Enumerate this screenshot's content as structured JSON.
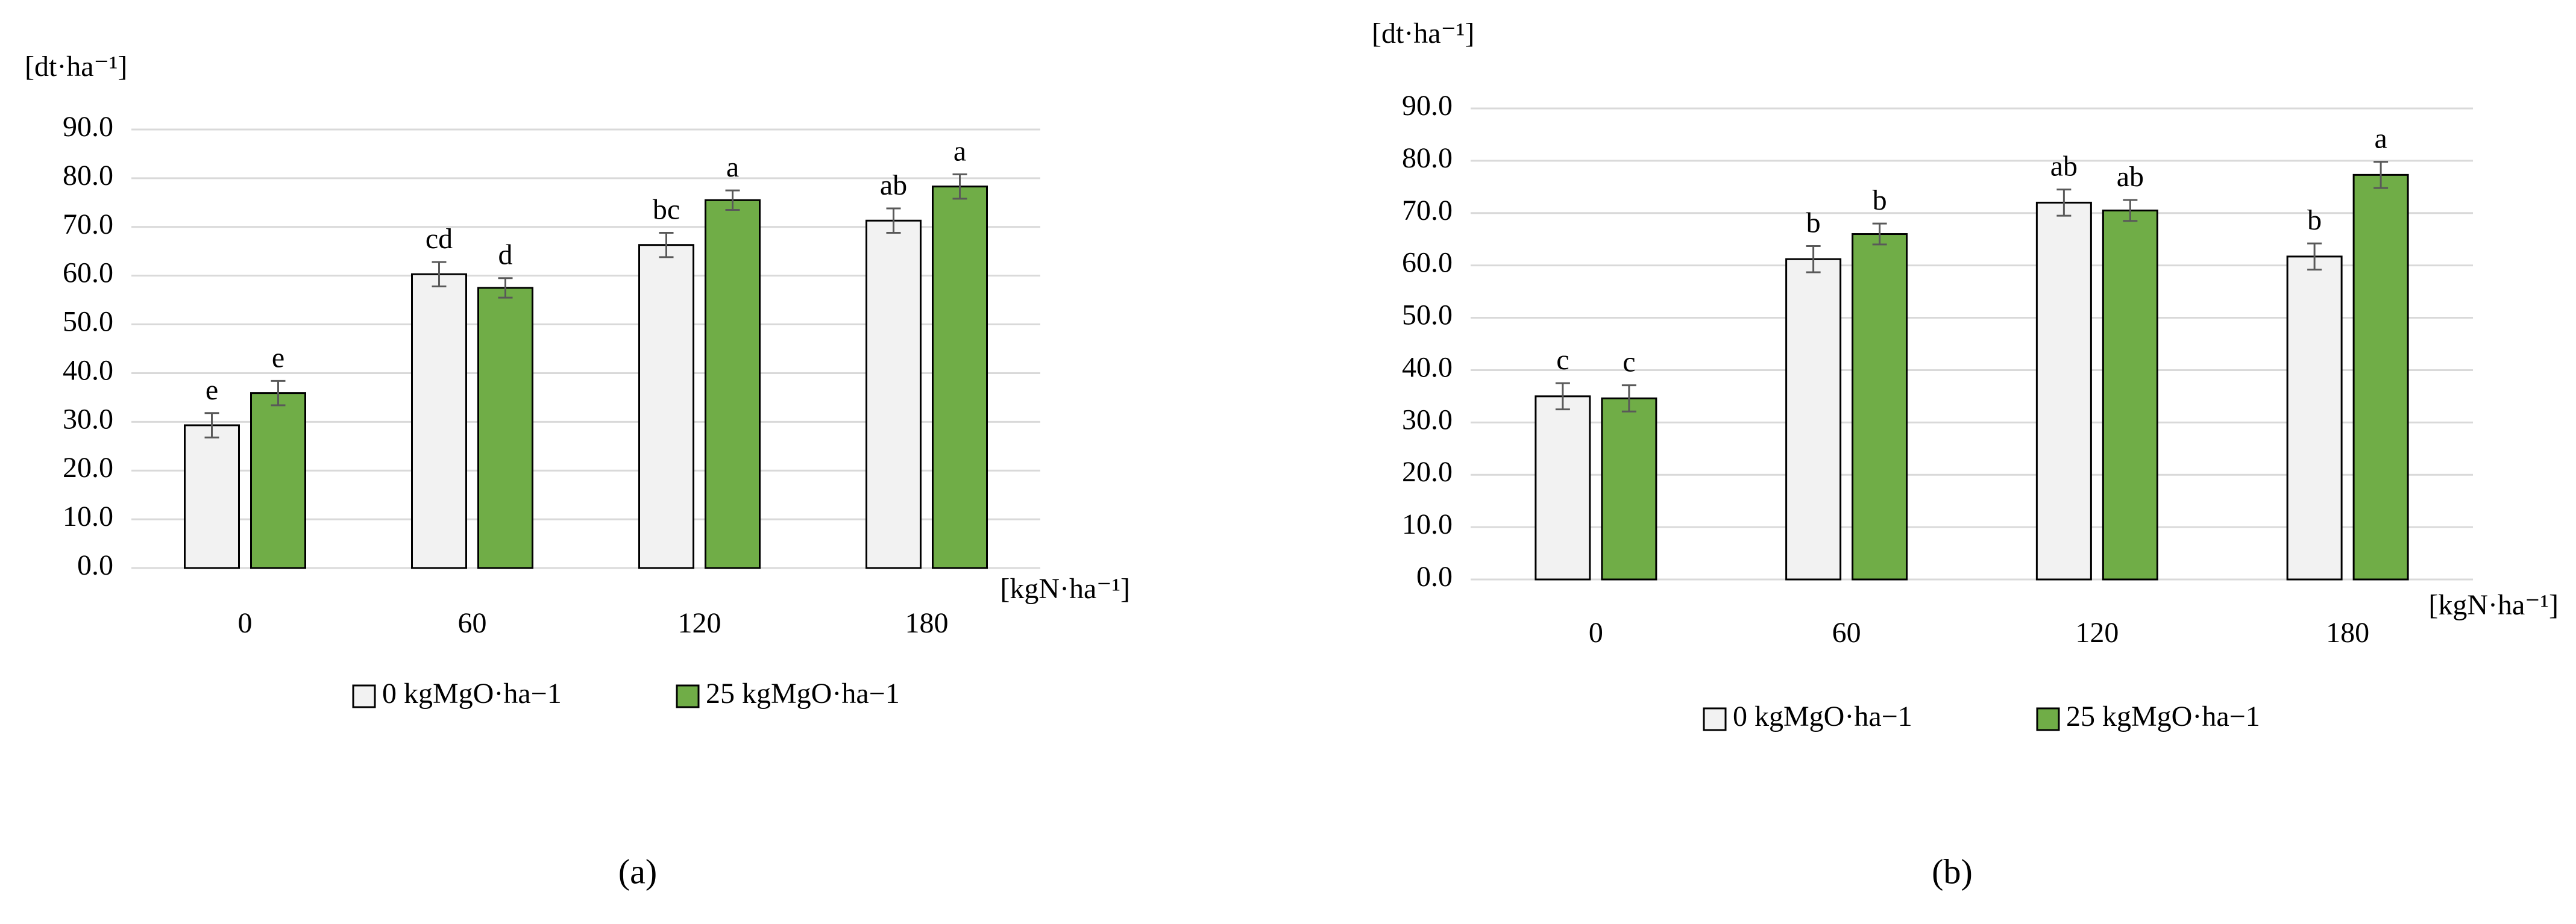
{
  "chart_data": [
    {
      "type": "bar",
      "y_label": "[dt·ha⁻¹]",
      "x_label": "[kgN·ha⁻¹]",
      "caption": "(a)",
      "categories": [
        "0",
        "60",
        "120",
        "180"
      ],
      "series": [
        {
          "name": "0 kgMgO·ha−1",
          "color": "#f2f2f2",
          "values": [
            29.3,
            60.3,
            66.3,
            71.3
          ],
          "errors": [
            2.5,
            2.5,
            2.5,
            2.5
          ],
          "annotations": [
            "e",
            "cd",
            "bc",
            "ab"
          ]
        },
        {
          "name": "25 kgMgO·ha−1",
          "color": "#70ad47",
          "values": [
            35.9,
            57.5,
            75.5,
            78.3
          ],
          "errors": [
            2.5,
            2.0,
            2.0,
            2.5
          ],
          "annotations": [
            "e",
            "d",
            "a",
            "a"
          ]
        }
      ],
      "ylim": [
        0,
        90
      ],
      "yticks": [
        {
          "value": 0,
          "label": "0.0"
        },
        {
          "value": 10,
          "label": "10.0"
        },
        {
          "value": 20,
          "label": "20.0"
        },
        {
          "value": 30,
          "label": "30.0"
        },
        {
          "value": 40,
          "label": "40.0"
        },
        {
          "value": 50,
          "label": "50.0"
        },
        {
          "value": 60,
          "label": "60.0"
        },
        {
          "value": 70,
          "label": "70.0"
        },
        {
          "value": 80,
          "label": "80.0"
        },
        {
          "value": 90,
          "label": "90.0"
        }
      ],
      "grid": true
    },
    {
      "type": "bar",
      "y_label": "[dt·ha⁻¹]",
      "x_label": "[kgN·ha⁻¹]",
      "caption": "(b)",
      "categories": [
        "0",
        "60",
        "120",
        "180"
      ],
      "series": [
        {
          "name": "0 kgMgO·ha−1",
          "color": "#f2f2f2",
          "values": [
            35.0,
            61.2,
            72.0,
            61.7
          ],
          "errors": [
            2.5,
            2.5,
            2.5,
            2.5
          ],
          "annotations": [
            "c",
            "b",
            "ab",
            "b"
          ]
        },
        {
          "name": "25 kgMgO·ha−1",
          "color": "#70ad47",
          "values": [
            34.6,
            66.0,
            70.5,
            77.3
          ],
          "errors": [
            2.5,
            2.0,
            2.0,
            2.5
          ],
          "annotations": [
            "c",
            "b",
            "ab",
            "a"
          ]
        }
      ],
      "ylim": [
        0,
        90
      ],
      "yticks": [
        {
          "value": 0,
          "label": "0.0"
        },
        {
          "value": 10,
          "label": "10.0"
        },
        {
          "value": 20,
          "label": "20.0"
        },
        {
          "value": 30,
          "label": "30.0"
        },
        {
          "value": 40,
          "label": "40.0"
        },
        {
          "value": 50,
          "label": "50.0"
        },
        {
          "value": 60,
          "label": "60.0"
        },
        {
          "value": 70,
          "label": "70.0"
        },
        {
          "value": 80,
          "label": "80.0"
        },
        {
          "value": 90,
          "label": "90.0"
        }
      ],
      "grid": true
    }
  ]
}
